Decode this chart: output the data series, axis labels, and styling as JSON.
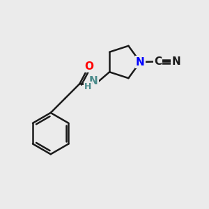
{
  "bg_color": "#ebebeb",
  "bond_color": "#1a1a1a",
  "N_color": "#0000ff",
  "NH_color": "#4a8a8a",
  "O_color": "#ff0000",
  "C_color": "#1a1a1a",
  "line_width": 1.8,
  "font_size_atom": 11,
  "font_size_H": 9,
  "xlim": [
    0,
    10
  ],
  "ylim": [
    0,
    10
  ]
}
